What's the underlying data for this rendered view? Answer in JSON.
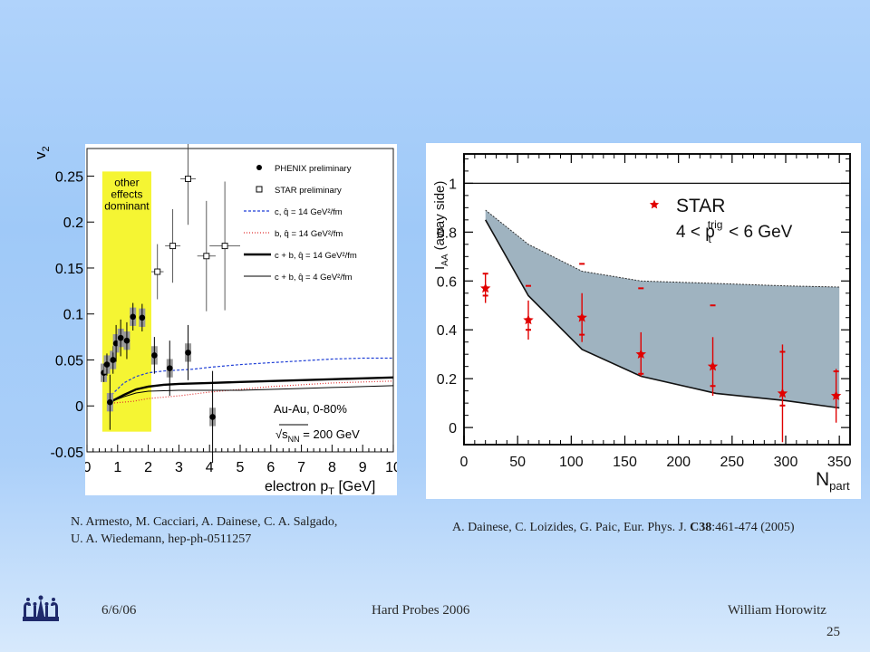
{
  "colors": {
    "yellow_band": "#f5f533",
    "gray_band": "#9fb3c0",
    "star_red": "#e00000",
    "blue_curve": "#1f3fd6",
    "red_curve": "#e03030",
    "frame": "#1a1a1a"
  },
  "chart_data": [
    {
      "type": "scatter",
      "ylabel_main": "v",
      "ylabel_sub": "2",
      "xlabel": "electron p",
      "xlabel_sub": "T",
      "xlabel_unit": " [GeV]",
      "xlim": [
        0,
        10
      ],
      "ylim": [
        -0.05,
        0.28
      ],
      "xticks": [
        "0",
        "1",
        "2",
        "3",
        "4",
        "5",
        "6",
        "7",
        "8",
        "9",
        "10"
      ],
      "yticks": [
        "-0.05",
        "0",
        "0.05",
        "0.1",
        "0.15",
        "0.2",
        "0.25"
      ],
      "band_label": [
        "other",
        "effects",
        "dominant"
      ],
      "legend": [
        {
          "label": "PHENIX preliminary",
          "marker": "filled-circle"
        },
        {
          "label": "STAR preliminary",
          "marker": "open-square"
        },
        {
          "label": "c, q̂ = 14 GeV²/fm",
          "style": "blue-dashed"
        },
        {
          "label": "b, q̂ = 14 GeV²/fm",
          "style": "red-dotted"
        },
        {
          "label": "c + b, q̂ = 14 GeV²/fm",
          "style": "black-thick"
        },
        {
          "label": "c + b, q̂ = 4 GeV²/fm",
          "style": "black-thin"
        }
      ],
      "annotation_system": "Au-Au, 0-80%",
      "annotation_energy_pre": "s",
      "annotation_energy_sub": "NN",
      "annotation_energy_post": " = 200 GeV",
      "series": [
        {
          "name": "PHENIX preliminary",
          "points": [
            {
              "x": 0.55,
              "y": 0.036,
              "err": 0.01
            },
            {
              "x": 0.65,
              "y": 0.045,
              "err": 0.012
            },
            {
              "x": 0.75,
              "y": 0.004,
              "err": 0.03
            },
            {
              "x": 0.85,
              "y": 0.05,
              "err": 0.015
            },
            {
              "x": 0.95,
              "y": 0.068,
              "err": 0.02
            },
            {
              "x": 1.1,
              "y": 0.074,
              "err": 0.02
            },
            {
              "x": 1.3,
              "y": 0.071,
              "err": 0.02
            },
            {
              "x": 1.5,
              "y": 0.097,
              "err": 0.015
            },
            {
              "x": 1.8,
              "y": 0.096,
              "err": 0.015
            },
            {
              "x": 2.2,
              "y": 0.055,
              "err": 0.02
            },
            {
              "x": 2.7,
              "y": 0.041,
              "err": 0.03
            },
            {
              "x": 3.3,
              "y": 0.058,
              "err": 0.03
            },
            {
              "x": 4.1,
              "y": -0.012,
              "err": 0.05
            }
          ]
        },
        {
          "name": "STAR preliminary",
          "points": [
            {
              "x": 2.3,
              "y": 0.146,
              "err": 0.03,
              "xerr": 0.2
            },
            {
              "x": 2.8,
              "y": 0.174,
              "err": 0.04,
              "xerr": 0.25
            },
            {
              "x": 3.3,
              "y": 0.247,
              "err": 0.05,
              "xerr": 0.25
            },
            {
              "x": 3.9,
              "y": 0.163,
              "err": 0.06,
              "xerr": 0.3
            },
            {
              "x": 4.5,
              "y": 0.174,
              "err": 0.07,
              "xerr": 0.5
            }
          ]
        },
        {
          "name": "c, q̂ = 14 GeV²/fm",
          "x": [
            0.8,
            1.2,
            1.6,
            2,
            2.5,
            3,
            3.5,
            4,
            5,
            6,
            7,
            8,
            9,
            10
          ],
          "y": [
            0.012,
            0.025,
            0.032,
            0.036,
            0.038,
            0.039,
            0.04,
            0.042,
            0.045,
            0.047,
            0.049,
            0.051,
            0.052,
            0.052
          ]
        },
        {
          "name": "b, q̂ = 14 GeV²/fm",
          "x": [
            0.8,
            1.5,
            2,
            3,
            4,
            5,
            6,
            7,
            8,
            9,
            10
          ],
          "y": [
            0.003,
            0.005,
            0.008,
            0.011,
            0.015,
            0.018,
            0.021,
            0.023,
            0.025,
            0.026,
            0.027
          ]
        },
        {
          "name": "c + b, q̂ = 14 GeV²/fm",
          "x": [
            0.8,
            1.2,
            1.6,
            2,
            2.5,
            3,
            4,
            5,
            6,
            7,
            8,
            9,
            10
          ],
          "y": [
            0.005,
            0.012,
            0.018,
            0.021,
            0.023,
            0.024,
            0.025,
            0.026,
            0.027,
            0.028,
            0.029,
            0.03,
            0.031
          ]
        },
        {
          "name": "c + b, q̂ = 4 GeV²/fm",
          "x": [
            0.8,
            1.2,
            1.6,
            2,
            3,
            4,
            5,
            6,
            7,
            8,
            9,
            10
          ],
          "y": [
            0.005,
            0.01,
            0.014,
            0.016,
            0.017,
            0.017,
            0.017,
            0.018,
            0.019,
            0.02,
            0.021,
            0.022
          ]
        }
      ]
    },
    {
      "type": "scatter",
      "ylabel_main": "I",
      "ylabel_sub": "AA",
      "ylabel_paren": " (away side)",
      "xlabel_main": "N",
      "xlabel_sub": "part",
      "xlim": [
        0,
        360
      ],
      "ylim": [
        -0.07,
        1.12
      ],
      "xticks": [
        "0",
        "50",
        "100",
        "150",
        "200",
        "250",
        "300",
        "350"
      ],
      "yticks": [
        "0",
        "0.2",
        "0.4",
        "0.6",
        "0.8",
        "1"
      ],
      "reference_line": 1,
      "legend_title": "STAR",
      "legend_range_pre": "4 < p",
      "legend_range_sup": "trig",
      "legend_range_sub": "t",
      "legend_range_post": " < 6 GeV",
      "band": {
        "x": [
          20,
          60,
          110,
          165,
          235,
          300,
          350
        ],
        "upper": [
          0.89,
          0.75,
          0.64,
          0.6,
          0.59,
          0.58,
          0.575
        ],
        "lower": [
          0.85,
          0.54,
          0.32,
          0.21,
          0.14,
          0.11,
          0.08
        ]
      },
      "series": [
        {
          "name": "STAR",
          "points": [
            {
              "x": 20,
              "y": 0.57,
              "err": 0.06,
              "sys": [
                0.63,
                0.54
              ]
            },
            {
              "x": 60,
              "y": 0.44,
              "err": 0.08,
              "sys": [
                0.58,
                0.4
              ]
            },
            {
              "x": 110,
              "y": 0.45,
              "err": 0.1,
              "sys": [
                0.67,
                0.38
              ]
            },
            {
              "x": 165,
              "y": 0.3,
              "err": 0.09,
              "sys": [
                0.57,
                0.22
              ]
            },
            {
              "x": 232,
              "y": 0.25,
              "err": 0.12,
              "sys": [
                0.5,
                0.17
              ]
            },
            {
              "x": 297,
              "y": 0.14,
              "err": 0.2,
              "sys": [
                0.31,
                0.09
              ]
            },
            {
              "x": 347,
              "y": 0.13,
              "err": 0.11,
              "sys": [
                0.23,
                0.13
              ]
            }
          ]
        }
      ]
    }
  ],
  "captions": {
    "left_line1": "N. Armesto, M. Cacciari, A. Dainese, C. A. Salgado,",
    "left_line2": "U. A. Wiedemann, hep-ph-0511257",
    "right_pre": "A. Dainese, C. Loizides, G. Paic, Eur. Phys. J. ",
    "right_bold": "C38",
    "right_post": ":461-474 (2005)"
  },
  "footer": {
    "date": "6/6/06",
    "conference": "Hard Probes 2006",
    "author": "William Horowitz",
    "slide_number": "25"
  }
}
